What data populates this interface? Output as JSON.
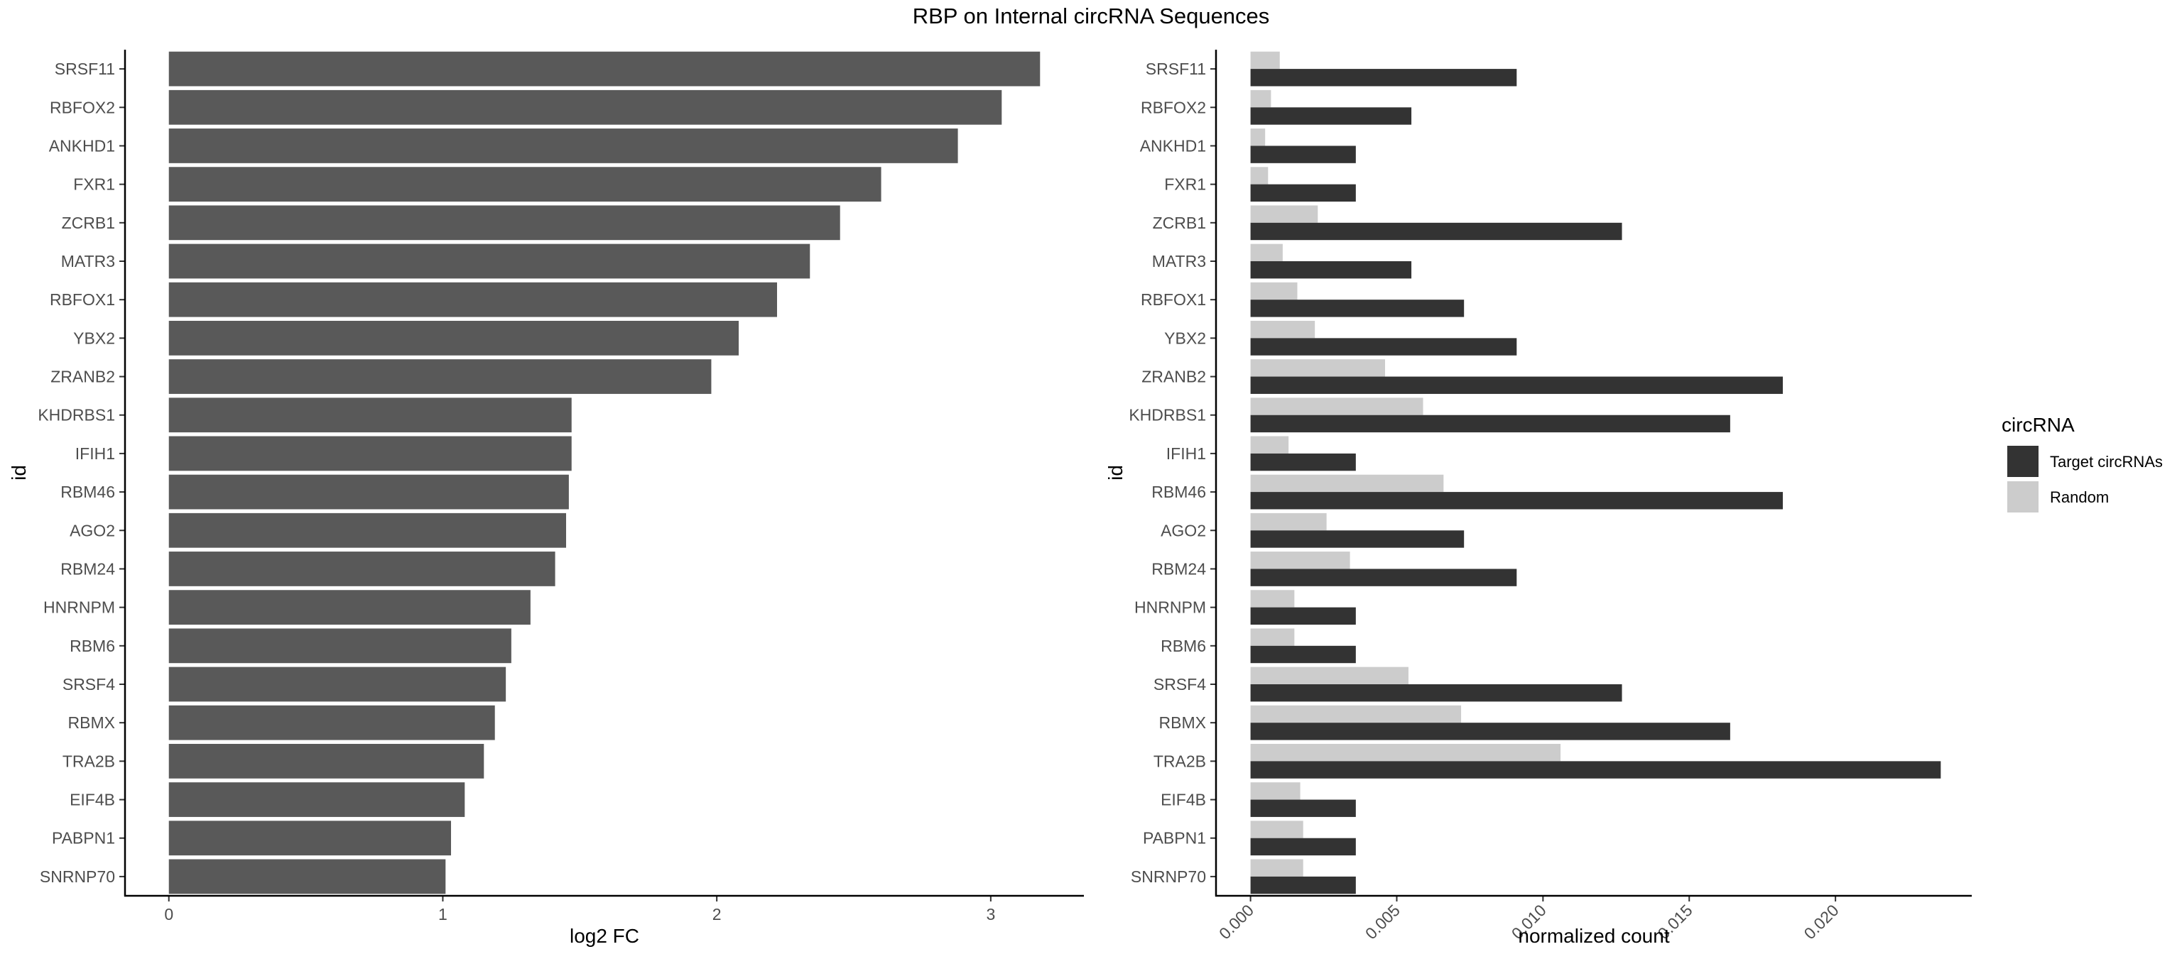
{
  "title": "RBP on Internal circRNA Sequences",
  "chart_data": [
    {
      "type": "bar",
      "orientation": "horizontal",
      "categories": [
        "SRSF11",
        "RBFOX2",
        "ANKHD1",
        "FXR1",
        "ZCRB1",
        "MATR3",
        "RBFOX1",
        "YBX2",
        "ZRANB2",
        "KHDRBS1",
        "IFIH1",
        "RBM46",
        "AGO2",
        "RBM24",
        "HNRNPM",
        "RBM6",
        "SRSF4",
        "RBMX",
        "TRA2B",
        "EIF4B",
        "PABPN1",
        "SNRNP70"
      ],
      "values": [
        3.18,
        3.04,
        2.88,
        2.6,
        2.45,
        2.34,
        2.22,
        2.08,
        1.98,
        1.47,
        1.47,
        1.46,
        1.45,
        1.41,
        1.32,
        1.25,
        1.23,
        1.19,
        1.15,
        1.08,
        1.03,
        1.01
      ],
      "xlabel": "log2 FC",
      "ylabel": "id",
      "xlim": [
        -0.16,
        3.34
      ],
      "xticks": [
        0,
        1,
        2,
        3
      ],
      "xtick_labels": [
        "0",
        "1",
        "2",
        "3"
      ],
      "bar_color": "#595959"
    },
    {
      "type": "bar",
      "orientation": "horizontal",
      "categories": [
        "SRSF11",
        "RBFOX2",
        "ANKHD1",
        "FXR1",
        "ZCRB1",
        "MATR3",
        "RBFOX1",
        "YBX2",
        "ZRANB2",
        "KHDRBS1",
        "IFIH1",
        "RBM46",
        "AGO2",
        "RBM24",
        "HNRNPM",
        "RBM6",
        "SRSF4",
        "RBMX",
        "TRA2B",
        "EIF4B",
        "PABPN1",
        "SNRNP70"
      ],
      "series": [
        {
          "name": "Target circRNAs",
          "color": "#333333",
          "values": [
            0.0091,
            0.0055,
            0.0036,
            0.0036,
            0.0127,
            0.0055,
            0.0073,
            0.0091,
            0.0182,
            0.0164,
            0.0036,
            0.0182,
            0.0073,
            0.0091,
            0.0036,
            0.0036,
            0.0127,
            0.0164,
            0.0236,
            0.0036,
            0.0036,
            0.0036
          ]
        },
        {
          "name": "Random",
          "color": "#cccccc",
          "values": [
            0.001,
            0.0007,
            0.0005,
            0.0006,
            0.0023,
            0.0011,
            0.0016,
            0.0022,
            0.0046,
            0.0059,
            0.0013,
            0.0066,
            0.0026,
            0.0034,
            0.0015,
            0.0015,
            0.0054,
            0.0072,
            0.0106,
            0.0017,
            0.0018,
            0.0018
          ]
        }
      ],
      "xlabel": "normalized count",
      "ylabel": "id",
      "xlim": [
        -0.00118,
        0.02466
      ],
      "xticks": [
        0.0,
        0.005,
        0.01,
        0.015,
        0.02
      ],
      "xtick_labels": [
        "0.000",
        "0.005",
        "0.010",
        "0.015",
        "0.020"
      ],
      "legend": {
        "title": "circRNA",
        "position": "right",
        "labels": [
          "Target circRNAs",
          "Random"
        ]
      }
    }
  ]
}
